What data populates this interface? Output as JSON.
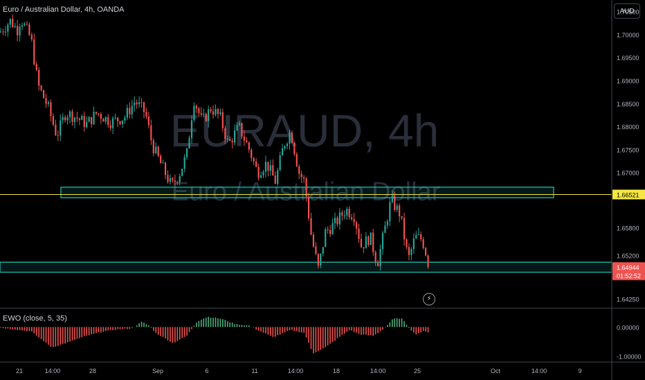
{
  "header": {
    "symbol_title": "Euro / Australian Dollar, 4h, OANDA",
    "currency_button": "AUD"
  },
  "watermark": {
    "ticker": "EURAUD, 4h",
    "name": "Euro / Australian Dollar"
  },
  "colors": {
    "up": "#26a69a",
    "down": "#ef5350",
    "zone": "#22c7bd",
    "hline": "#f5e642",
    "price_tag": "#ef5350",
    "hline_tag": "#f5e642",
    "ewo_up": "#4caf7d",
    "ewo_down": "#ef5350"
  },
  "indicator": {
    "title": "EWO (close, 5, 35)",
    "ticks": [
      "0.00000",
      "-1.00000"
    ]
  },
  "price_axis": {
    "ticks": [
      "1.70500",
      "1.70000",
      "1.69500",
      "1.69000",
      "1.68500",
      "1.68000",
      "1.67500",
      "1.67000",
      "1.65800",
      "1.65200",
      "1.64250"
    ],
    "hline_label": "1.66521",
    "last_price_label": "1.64944",
    "countdown_label": "01:52:52"
  },
  "time_axis": {
    "ticks": [
      "21",
      "14:00",
      "28",
      "Sep",
      "6",
      "11",
      "14:00",
      "18",
      "14:00",
      "25",
      "Oct",
      "14:00",
      "9"
    ]
  },
  "chart_data": {
    "type": "candlestick",
    "symbol": "EURAUD",
    "timeframe": "4h",
    "ylim": [
      1.6405,
      1.7075
    ],
    "horizontal_line": 1.66521,
    "last_price": 1.64944,
    "zones": [
      {
        "from": 1.6645,
        "to": 1.6668
      },
      {
        "from": 1.6483,
        "to": 1.6505
      }
    ],
    "close_path": [
      [
        0,
        1.7005
      ],
      [
        15,
        1.703
      ],
      [
        25,
        1.701
      ],
      [
        30,
        1.7035
      ],
      [
        45,
        1.699
      ],
      [
        55,
        1.689
      ],
      [
        70,
        1.684
      ],
      [
        82,
        1.678
      ],
      [
        95,
        1.683
      ],
      [
        110,
        1.682
      ],
      [
        125,
        1.6805
      ],
      [
        140,
        1.683
      ],
      [
        160,
        1.681
      ],
      [
        180,
        1.682
      ],
      [
        195,
        1.6855
      ],
      [
        210,
        1.683
      ],
      [
        220,
        1.676
      ],
      [
        235,
        1.671
      ],
      [
        248,
        1.667
      ],
      [
        260,
        1.67
      ],
      [
        270,
        1.674
      ],
      [
        280,
        1.686
      ],
      [
        292,
        1.681
      ],
      [
        305,
        1.684
      ],
      [
        318,
        1.682
      ],
      [
        330,
        1.676
      ],
      [
        345,
        1.68
      ],
      [
        360,
        1.675
      ],
      [
        372,
        1.67
      ],
      [
        385,
        1.672
      ],
      [
        398,
        1.668
      ],
      [
        410,
        1.676
      ],
      [
        420,
        1.679
      ],
      [
        432,
        1.67
      ],
      [
        440,
        1.668
      ],
      [
        450,
        1.656
      ],
      [
        460,
        1.649
      ],
      [
        470,
        1.657
      ],
      [
        485,
        1.659
      ],
      [
        500,
        1.662
      ],
      [
        512,
        1.6605
      ],
      [
        522,
        1.654
      ],
      [
        535,
        1.656
      ],
      [
        545,
        1.65
      ],
      [
        555,
        1.657
      ],
      [
        565,
        1.664
      ],
      [
        578,
        1.661
      ],
      [
        590,
        1.651
      ],
      [
        600,
        1.656
      ],
      [
        610,
        1.6555
      ],
      [
        621,
        1.6494
      ]
    ],
    "ewo_path": [
      [
        0,
        -0.02
      ],
      [
        10,
        -0.05
      ],
      [
        45,
        -0.15
      ],
      [
        75,
        -0.7
      ],
      [
        95,
        -0.55
      ],
      [
        125,
        -0.3
      ],
      [
        150,
        -0.15
      ],
      [
        170,
        -0.08
      ],
      [
        190,
        -0.05
      ],
      [
        205,
        0.18
      ],
      [
        215,
        0.05
      ],
      [
        225,
        -0.2
      ],
      [
        250,
        -0.55
      ],
      [
        270,
        -0.3
      ],
      [
        285,
        0.2
      ],
      [
        300,
        0.35
      ],
      [
        320,
        0.28
      ],
      [
        340,
        0.1
      ],
      [
        360,
        0.05
      ],
      [
        372,
        -0.1
      ],
      [
        395,
        -0.35
      ],
      [
        420,
        -0.1
      ],
      [
        440,
        -0.2
      ],
      [
        452,
        -0.9
      ],
      [
        470,
        -0.7
      ],
      [
        490,
        -0.35
      ],
      [
        505,
        -0.1
      ],
      [
        520,
        -0.25
      ],
      [
        540,
        -0.3
      ],
      [
        555,
        -0.05
      ],
      [
        568,
        0.28
      ],
      [
        580,
        0.3
      ],
      [
        592,
        -0.05
      ],
      [
        600,
        -0.25
      ],
      [
        612,
        -0.15
      ],
      [
        621,
        -0.18
      ]
    ],
    "ewo_ylim": [
      -1.15,
      0.55
    ],
    "time_tick_positions": [
      [
        21,
        28
      ],
      [
        14,
        76
      ],
      [
        28,
        134
      ],
      [
        1,
        228
      ],
      [
        6,
        299
      ],
      [
        11,
        368
      ],
      [
        14,
        427
      ],
      [
        18,
        486
      ],
      [
        14,
        546
      ],
      [
        25,
        603
      ],
      [
        1,
        716
      ],
      [
        14,
        779
      ],
      [
        9,
        838
      ]
    ]
  }
}
